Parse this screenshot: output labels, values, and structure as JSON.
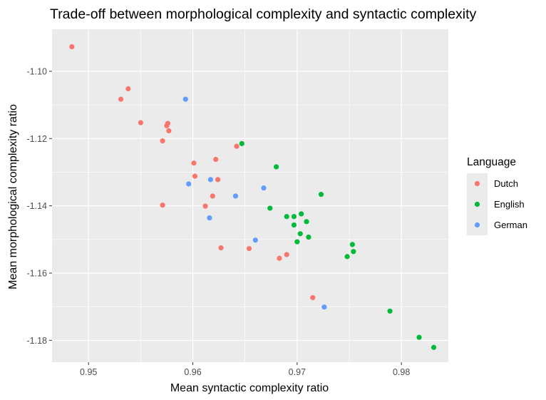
{
  "chart_data": {
    "type": "scatter",
    "title": "Trade-off between morphological complexity and syntactic complexity",
    "xlabel": "Mean syntactic complexity ratio",
    "ylabel": "Mean morphological complexity ratio",
    "xlim": [
      0.9465,
      0.9845
    ],
    "ylim": [
      -1.1865,
      -1.0875
    ],
    "x_ticks": [
      0.95,
      0.96,
      0.97,
      0.98
    ],
    "x_tick_labels": [
      "0.95",
      "0.96",
      "0.97",
      "0.98"
    ],
    "y_ticks": [
      -1.1,
      -1.12,
      -1.14,
      -1.16,
      -1.18
    ],
    "y_tick_labels": [
      "-1.10",
      "-1.12",
      "-1.14",
      "-1.16",
      "-1.18"
    ],
    "grid": true,
    "background": "#ebebeb",
    "legend": {
      "title": "Language",
      "position": "right"
    },
    "series": [
      {
        "name": "Dutch",
        "color": "#F8766D",
        "points": [
          [
            0.9484,
            -1.0927
          ],
          [
            0.9538,
            -1.1052
          ],
          [
            0.9531,
            -1.1083
          ],
          [
            0.955,
            -1.1153
          ],
          [
            0.9576,
            -1.1155
          ],
          [
            0.9575,
            -1.1162
          ],
          [
            0.9577,
            -1.1177
          ],
          [
            0.9571,
            -1.1207
          ],
          [
            0.9642,
            -1.1223
          ],
          [
            0.9622,
            -1.1262
          ],
          [
            0.9601,
            -1.1273
          ],
          [
            0.9602,
            -1.1312
          ],
          [
            0.9624,
            -1.1322
          ],
          [
            0.9619,
            -1.1371
          ],
          [
            0.9612,
            -1.1401
          ],
          [
            0.9571,
            -1.1398
          ],
          [
            0.9627,
            -1.1525
          ],
          [
            0.9654,
            -1.1527
          ],
          [
            0.969,
            -1.1545
          ],
          [
            0.9683,
            -1.1556
          ],
          [
            0.9715,
            -1.1673
          ]
        ]
      },
      {
        "name": "English",
        "color": "#00BA38",
        "points": [
          [
            0.9647,
            -1.1215
          ],
          [
            0.968,
            -1.1284
          ],
          [
            0.9723,
            -1.1366
          ],
          [
            0.9674,
            -1.1407
          ],
          [
            0.9704,
            -1.1424
          ],
          [
            0.969,
            -1.1432
          ],
          [
            0.9697,
            -1.1432
          ],
          [
            0.9709,
            -1.1447
          ],
          [
            0.9697,
            -1.1457
          ],
          [
            0.9703,
            -1.1483
          ],
          [
            0.9711,
            -1.1493
          ],
          [
            0.97,
            -1.1507
          ],
          [
            0.9753,
            -1.1515
          ],
          [
            0.9754,
            -1.1536
          ],
          [
            0.9748,
            -1.1551
          ],
          [
            0.9789,
            -1.1713
          ],
          [
            0.9817,
            -1.1791
          ],
          [
            0.9831,
            -1.1821
          ]
        ]
      },
      {
        "name": "German",
        "color": "#619CFF",
        "points": [
          [
            0.9593,
            -1.1083
          ],
          [
            0.9617,
            -1.1322
          ],
          [
            0.9596,
            -1.1335
          ],
          [
            0.9668,
            -1.1347
          ],
          [
            0.9641,
            -1.1371
          ],
          [
            0.9616,
            -1.1436
          ],
          [
            0.966,
            -1.1502
          ],
          [
            0.9726,
            -1.1701
          ]
        ]
      }
    ]
  }
}
